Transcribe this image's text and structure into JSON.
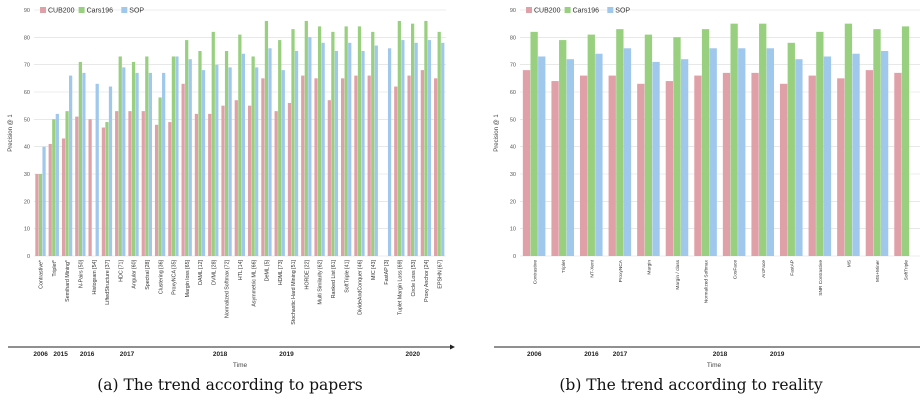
{
  "chart_data": [
    {
      "type": "bar",
      "ylabel": "Precision @ 1",
      "xlabel": "Time",
      "ylim": [
        0,
        90
      ],
      "yticks": [
        0,
        10,
        20,
        30,
        40,
        50,
        60,
        70,
        80,
        90
      ],
      "grid": true,
      "legend_position": "top-left",
      "categories": [
        "Contrastive*",
        "Triplet*",
        "Semihard Mining*",
        "N-Pairs [50]",
        "Histogram [54]",
        "LiftedStructure [37]",
        "HDC [71]",
        "Angular [60]",
        "Spectral [28]",
        "Clustering [36]",
        "ProxyNCA [35]",
        "Margin loss [65]",
        "DAML [12]",
        "DVML [28]",
        "Normalized Softmax [72]",
        "HTL [14]",
        "Asymmetric ML [66]",
        "DeML [5]",
        "HDML [73]",
        "Stochastic Hard Mining [51]",
        "HORDE [22]",
        "Multi Similarity [62]",
        "Ranked List [61]",
        "SoftTriple [41]",
        "DivideAndConquer [46]",
        "MIC [43]",
        "FastAP [3]",
        "Tuplet Margin Loss [69]",
        "Circle Loss [53]",
        "Proxy Anchor [24]",
        "EPSHN [67]"
      ],
      "series": [
        {
          "name": "CUB200",
          "color": "#e0a0a8",
          "values": [
            30,
            41,
            43,
            51,
            50,
            47,
            53,
            53,
            53,
            48,
            49,
            63,
            52,
            52,
            55,
            57,
            55,
            65,
            53,
            56,
            66,
            65,
            57,
            65,
            66,
            66,
            null,
            62,
            66,
            68,
            65
          ]
        },
        {
          "name": "Cars196",
          "color": "#98d080",
          "values": [
            30,
            50,
            53,
            71,
            null,
            49,
            73,
            71,
            73,
            58,
            73,
            79,
            75,
            82,
            75,
            81,
            73,
            86,
            79,
            83,
            86,
            84,
            82,
            84,
            84,
            82,
            null,
            86,
            85,
            86,
            82
          ]
        },
        {
          "name": "SOP",
          "color": "#a0c8ec",
          "values": [
            40,
            52,
            66,
            67,
            63,
            62,
            69,
            67,
            67,
            67,
            73,
            72,
            68,
            70,
            69,
            74,
            69,
            76,
            68,
            75,
            80,
            78,
            75,
            78,
            75,
            77,
            76,
            79,
            78,
            79,
            78
          ]
        }
      ],
      "timeline": [
        {
          "label": "2006",
          "at": 0
        },
        {
          "label": "2015",
          "at": 1.5
        },
        {
          "label": "2016",
          "at": 3.5
        },
        {
          "label": "2017",
          "at": 6.5
        },
        {
          "label": "2018",
          "at": 13.5
        },
        {
          "label": "2019",
          "at": 18.5
        },
        {
          "label": "2020",
          "at": 28
        }
      ]
    },
    {
      "type": "bar",
      "ylabel": "Precision @ 1",
      "xlabel": "Time",
      "ylim": [
        0,
        90
      ],
      "yticks": [
        0,
        10,
        20,
        30,
        40,
        50,
        60,
        70,
        80,
        90
      ],
      "grid": true,
      "legend_position": "top-left",
      "categories": [
        "Contrastive",
        "Triplet",
        "NT-Xent",
        "ProxyNCA",
        "Margin",
        "Margin / class",
        "Normalized Softmax",
        "CosFace",
        "ArcFace",
        "FastAP",
        "SNR Contrastive",
        "MS",
        "MS+Miner",
        "SoftTriple"
      ],
      "series": [
        {
          "name": "CUB200",
          "color": "#e0a0a8",
          "values": [
            68,
            64,
            66,
            66,
            63,
            64,
            66,
            67,
            67,
            63,
            66,
            65,
            68,
            67
          ]
        },
        {
          "name": "Cars196",
          "color": "#98d080",
          "values": [
            82,
            79,
            81,
            83,
            81,
            80,
            83,
            85,
            85,
            78,
            82,
            85,
            83,
            84
          ]
        },
        {
          "name": "SOP",
          "color": "#a0c8ec",
          "values": [
            73,
            72,
            74,
            76,
            71,
            72,
            76,
            76,
            76,
            72,
            73,
            74,
            75,
            null
          ]
        }
      ],
      "timeline": [
        {
          "label": "2006",
          "at": 0
        },
        {
          "label": "2016",
          "at": 2
        },
        {
          "label": "2017",
          "at": 3
        },
        {
          "label": "2018",
          "at": 6.5
        },
        {
          "label": "2019",
          "at": 8.5
        }
      ]
    }
  ],
  "captions": {
    "a": "(a) The trend according to papers",
    "b": "(b) The trend according to reality"
  }
}
